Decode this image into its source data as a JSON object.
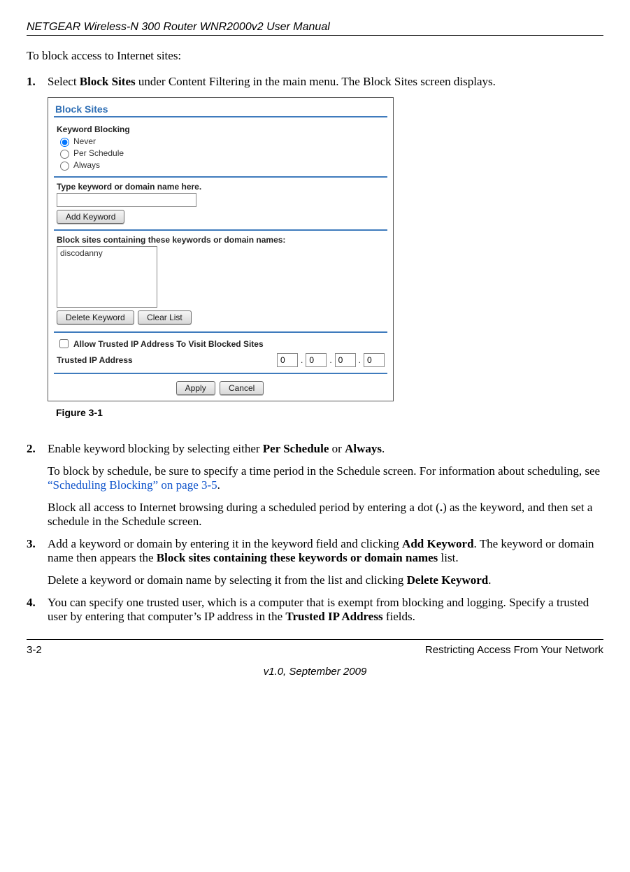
{
  "header": {
    "manual_title": "NETGEAR Wireless-N 300 Router WNR2000v2 User Manual"
  },
  "intro": "To block access to Internet sites:",
  "steps": [
    {
      "num": "1.",
      "paras": [
        {
          "html": "Select <b>Block Sites</b> under Content Filtering in the main menu. The Block Sites screen displays."
        }
      ]
    },
    {
      "num": "2.",
      "paras": [
        {
          "html": "Enable keyword blocking by selecting either <b>Per Schedule</b> or <b>Always</b>."
        },
        {
          "html": "To block by schedule, be sure to specify a time period in the Schedule screen. For information about scheduling, see <span class='link-blue'>“Scheduling Blocking” on page 3-5</span>."
        },
        {
          "html": "Block all access to Internet browsing during a scheduled period by entering a dot (<b>.</b>) as the keyword, and then set a schedule in the Schedule screen."
        }
      ]
    },
    {
      "num": "3.",
      "paras": [
        {
          "html": "Add a keyword or domain by entering it in the keyword field and clicking <b>Add Keyword</b>. The keyword or domain name then appears the <b>Block sites containing these keywords or domain names</b> list."
        },
        {
          "html": "Delete a keyword or domain name by selecting it from the list and clicking <b>Delete Keyword</b>."
        }
      ]
    },
    {
      "num": "4.",
      "paras": [
        {
          "html": "You can specify one trusted user, which is a computer that is exempt from blocking and logging. Specify a trusted user by entering that computer’s IP address in the <b>Trusted IP Address</b> fields."
        }
      ]
    }
  ],
  "screenshot": {
    "title": "Block Sites",
    "keyword_blocking_label": "Keyword Blocking",
    "radios": {
      "never": "Never",
      "per_schedule": "Per Schedule",
      "always": "Always"
    },
    "type_keyword_label": "Type keyword or domain name here.",
    "add_keyword_btn": "Add Keyword",
    "block_list_label": "Block sites containing these keywords or domain names:",
    "list_item": "discodanny",
    "delete_keyword_btn": "Delete Keyword",
    "clear_list_btn": "Clear List",
    "allow_trusted_label": "Allow Trusted IP Address To Visit Blocked Sites",
    "trusted_ip_label": "Trusted IP Address",
    "ip": {
      "a": "0",
      "b": "0",
      "c": "0",
      "d": "0"
    },
    "apply_btn": "Apply",
    "cancel_btn": "Cancel",
    "colors": {
      "title": "#2f6fb5",
      "separator": "#3f7bbd"
    }
  },
  "figure_caption": "Figure 3-1",
  "footer": {
    "page_num": "3-2",
    "section": "Restricting Access From Your Network",
    "version": "v1.0, September 2009"
  }
}
